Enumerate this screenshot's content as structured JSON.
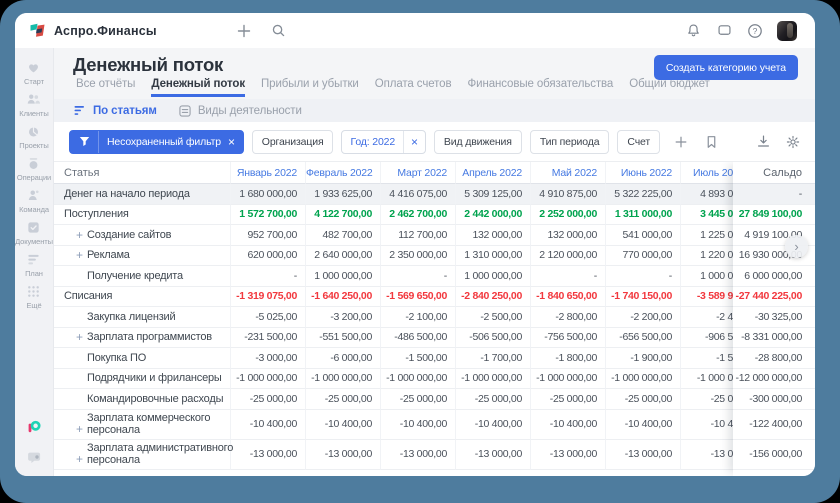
{
  "app": {
    "name": "Аспро.Финансы"
  },
  "topbar": {
    "icons": [
      {
        "id": "add",
        "icon": "plus"
      },
      {
        "id": "search",
        "icon": "search"
      },
      {
        "id": "notifications",
        "icon": "bell"
      },
      {
        "id": "messages",
        "icon": "chat"
      },
      {
        "id": "help",
        "icon": "help"
      }
    ]
  },
  "sidebar": {
    "items": [
      {
        "id": "start",
        "label": "Старт",
        "icon": "start"
      },
      {
        "id": "clients",
        "label": "Клиенты",
        "icon": "clients"
      },
      {
        "id": "projects",
        "label": "Проекты",
        "icon": "projects"
      },
      {
        "id": "operations",
        "label": "Операции",
        "icon": "operations"
      },
      {
        "id": "team",
        "label": "Команда",
        "icon": "team"
      },
      {
        "id": "documents",
        "label": "Документы",
        "icon": "documents"
      },
      {
        "id": "plan",
        "label": "План",
        "icon": "plan"
      },
      {
        "id": "more",
        "label": "Ещё",
        "icon": "more"
      }
    ],
    "footer_icons": [
      "product-logo",
      "chat-muted"
    ]
  },
  "page": {
    "title": "Денежный поток",
    "create_button": "Создать категорию учета",
    "tabs": [
      {
        "id": "all-reports",
        "label": "Все отчёты",
        "active": false
      },
      {
        "id": "cash-flow",
        "label": "Денежный поток",
        "active": true
      },
      {
        "id": "profit-loss",
        "label": "Прибыли и убытки",
        "active": false
      },
      {
        "id": "invoices",
        "label": "Оплата счетов",
        "active": false
      },
      {
        "id": "liabilities",
        "label": "Финансовые обязательства",
        "active": false
      },
      {
        "id": "budget",
        "label": "Общий бюджет",
        "active": false
      }
    ],
    "subtabs": [
      {
        "id": "by-items",
        "label": "По статьям",
        "icon": "sort-lines",
        "active": true
      },
      {
        "id": "activity-types",
        "label": "Виды деятельности",
        "icon": "list-box",
        "active": false
      }
    ]
  },
  "filters": {
    "saved_filter": {
      "label": "Несохраненный фильтр",
      "close": "×"
    },
    "chips": [
      {
        "id": "organization",
        "label": "Организация"
      },
      {
        "id": "year",
        "label": "Год: 2022",
        "close": "×"
      },
      {
        "id": "movement-type",
        "label": "Вид движения"
      },
      {
        "id": "period-type",
        "label": "Тип периода"
      },
      {
        "id": "account",
        "label": "Счет"
      }
    ],
    "plus": "+",
    "right_icons": [
      "download",
      "settings"
    ]
  },
  "table": {
    "first_col": "Статья",
    "saldo_col": "Сальдо",
    "months": [
      "Январь 2022",
      "Февраль 2022",
      "Март 2022",
      "Апрель 2022",
      "Май 2022",
      "Июнь 2022",
      "Июль 20"
    ],
    "rows": [
      {
        "id": "opening-balance",
        "label": "Денег на начало периода",
        "style": "opening",
        "plus": false,
        "values": [
          "1 680 000,00",
          "1 933 625,00",
          "4 416 075,00",
          "5 309 125,00",
          "4 910 875,00",
          "5 322 225,00"
        ],
        "july": "4 893 0",
        "saldo": "-"
      },
      {
        "id": "income",
        "label": "Поступления",
        "style": "income",
        "plus": false,
        "values": [
          "1 572 700,00",
          "4 122 700,00",
          "2 462 700,00",
          "2 442 000,00",
          "2 252 000,00",
          "1 311 000,00"
        ],
        "july": "3 445 0",
        "saldo": "27 849 100,00"
      },
      {
        "id": "site-creation",
        "label": "Создание сайтов",
        "style": "sub",
        "plus": true,
        "values": [
          "952 700,00",
          "482 700,00",
          "112 700,00",
          "132 000,00",
          "132 000,00",
          "541 000,00"
        ],
        "july": "1 225 0",
        "saldo": "4 919 100,00"
      },
      {
        "id": "advertising",
        "label": "Реклама",
        "style": "sub",
        "plus": true,
        "values": [
          "620 000,00",
          "2 640 000,00",
          "2 350 000,00",
          "1 310 000,00",
          "2 120 000,00",
          "770 000,00"
        ],
        "july": "1 220 0",
        "saldo": "16 930 000,00"
      },
      {
        "id": "loan",
        "label": "Получение кредита",
        "style": "sub",
        "plus": false,
        "values": [
          "-",
          "1 000 000,00",
          "-",
          "1 000 000,00",
          "-",
          "-"
        ],
        "july": "1 000 0",
        "saldo": "6 000 000,00"
      },
      {
        "id": "expenses",
        "label": "Списания",
        "style": "expense",
        "plus": false,
        "values": [
          "-1 319 075,00",
          "-1 640 250,00",
          "-1 569 650,00",
          "-2 840 250,00",
          "-1 840 650,00",
          "-1 740 150,00"
        ],
        "july": "-3 589 9",
        "saldo": "-27 440 225,00"
      },
      {
        "id": "licenses",
        "label": "Закупка лицензий",
        "style": "sub",
        "plus": false,
        "values": [
          "-5 025,00",
          "-3 200,00",
          "-2 100,00",
          "-2 500,00",
          "-2 800,00",
          "-2 200,00"
        ],
        "july": "-2 4",
        "saldo": "-30 325,00"
      },
      {
        "id": "dev-salary",
        "label": "Зарплата программистов",
        "style": "sub",
        "plus": true,
        "values": [
          "-231 500,00",
          "-551 500,00",
          "-486 500,00",
          "-506 500,00",
          "-756 500,00",
          "-656 500,00"
        ],
        "july": "-906 5",
        "saldo": "-8 331 000,00"
      },
      {
        "id": "software",
        "label": "Покупка ПО",
        "style": "sub",
        "plus": false,
        "values": [
          "-3 000,00",
          "-6 000,00",
          "-1 500,00",
          "-1 700,00",
          "-1 800,00",
          "-1 900,00"
        ],
        "july": "-1 5",
        "saldo": "-28 800,00"
      },
      {
        "id": "contractors",
        "label": "Подрядчики и фрилансеры",
        "style": "sub",
        "plus": false,
        "values": [
          "-1 000 000,00",
          "-1 000 000,00",
          "-1 000 000,00",
          "-1 000 000,00",
          "-1 000 000,00",
          "-1 000 000,00"
        ],
        "july": "-1 000 0",
        "saldo": "-12 000 000,00"
      },
      {
        "id": "travel",
        "label": "Командировочные расходы",
        "style": "sub",
        "plus": false,
        "values": [
          "-25 000,00",
          "-25 000,00",
          "-25 000,00",
          "-25 000,00",
          "-25 000,00",
          "-25 000,00"
        ],
        "july": "-25 0",
        "saldo": "-300 000,00"
      },
      {
        "id": "sales-salary",
        "label": "Зарплата коммерческого персонала",
        "label_lines": [
          "Зарплата коммерческого",
          "персонала"
        ],
        "style": "sub",
        "plus": true,
        "values": [
          "-10 400,00",
          "-10 400,00",
          "-10 400,00",
          "-10 400,00",
          "-10 400,00",
          "-10 400,00"
        ],
        "july": "-10 4",
        "saldo": "-122 400,00"
      },
      {
        "id": "admin-salary",
        "label": "Зарплата административного персонала",
        "label_lines": [
          "Зарплата административного",
          "персонала"
        ],
        "style": "sub",
        "plus": true,
        "values": [
          "-13 000,00",
          "-13 000,00",
          "-13 000,00",
          "-13 000,00",
          "-13 000,00",
          "-13 000,00"
        ],
        "july": "-13 0",
        "saldo": "-156 000,00"
      }
    ]
  },
  "colors": {
    "accent": "#3C6BE3",
    "green": "#00A34E",
    "red": "#F2383E",
    "frame": "#4E7C9E"
  }
}
